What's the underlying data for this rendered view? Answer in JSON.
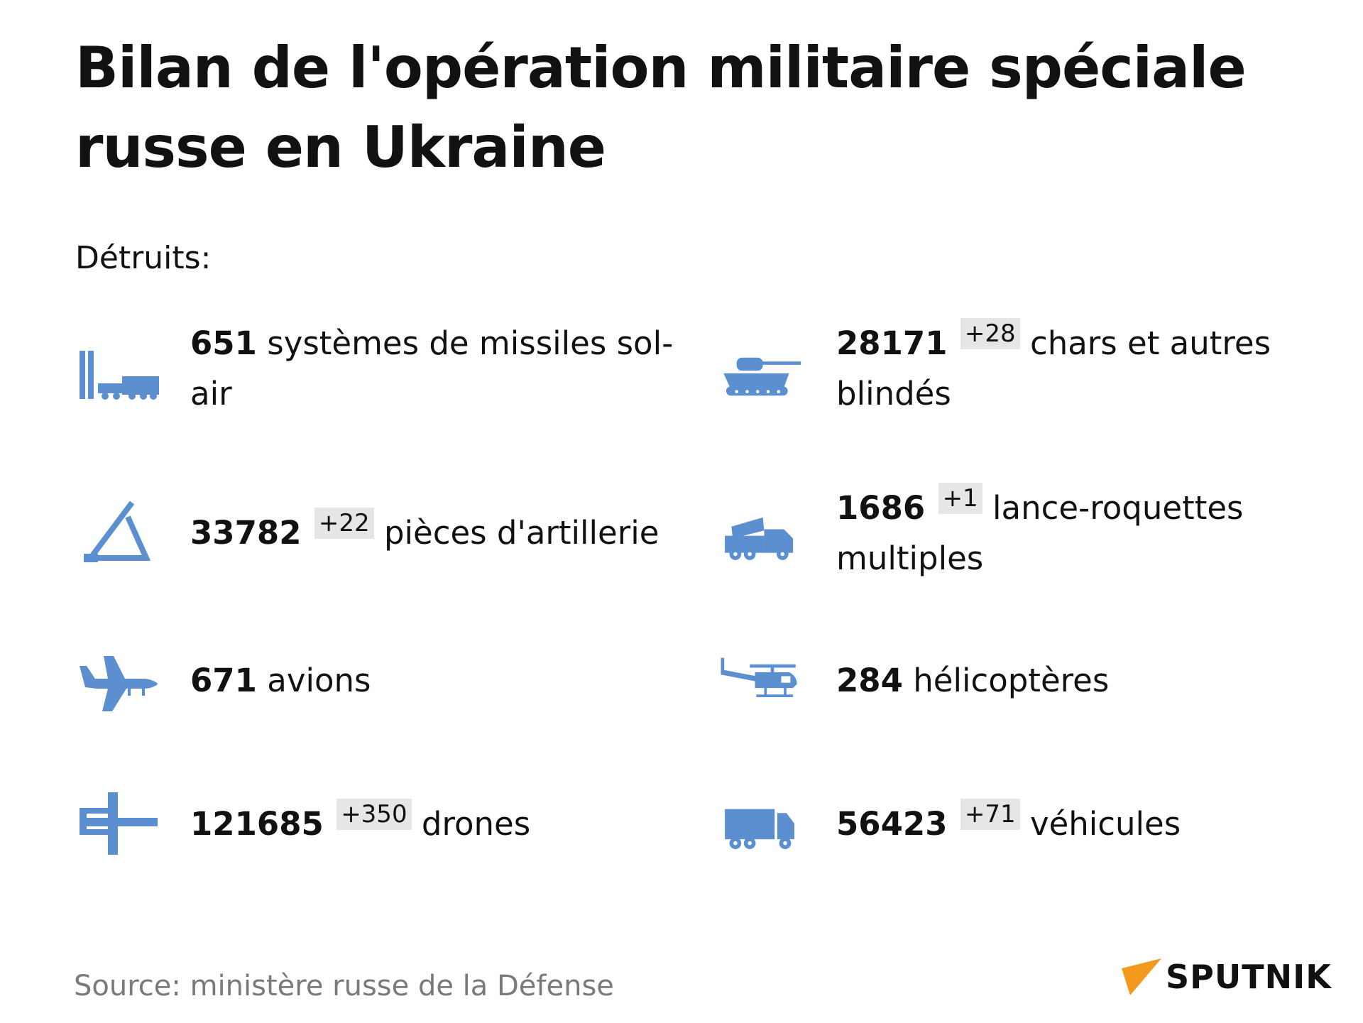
{
  "title": "Bilan de l'opération militaire spéciale russe en Ukraine",
  "subtitle": "Détruits:",
  "accent_color": "#5b8fd0",
  "items": [
    {
      "icon": "missile-launcher-icon",
      "number": "651",
      "delta": null,
      "label": "systèmes de missiles sol-air"
    },
    {
      "icon": "tank-icon",
      "number": "28171",
      "delta": "+28",
      "label": "chars et autres blindés"
    },
    {
      "icon": "artillery-icon",
      "number": "33782",
      "delta": "+22",
      "label": "pièces d'artillerie"
    },
    {
      "icon": "rocket-launcher-truck-icon",
      "number": "1686",
      "delta": "+1",
      "label": "lance-roquettes multiples"
    },
    {
      "icon": "airplane-icon",
      "number": "671",
      "delta": null,
      "label": "avions"
    },
    {
      "icon": "helicopter-icon",
      "number": "284",
      "delta": null,
      "label": "hélicoptères"
    },
    {
      "icon": "drone-icon",
      "number": "121685",
      "delta": "+350",
      "label": "drones"
    },
    {
      "icon": "truck-icon",
      "number": "56423",
      "delta": "+71",
      "label": "véhicules"
    }
  ],
  "source": "Source: ministère russe de la Défense",
  "logo": {
    "text": "SPUTNIK",
    "color": "#f39a1e"
  }
}
